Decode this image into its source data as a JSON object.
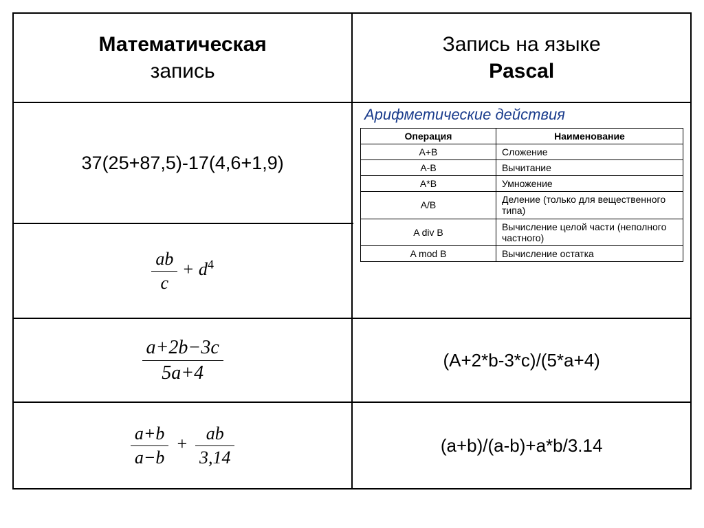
{
  "colors": {
    "border": "#000000",
    "background": "#ffffff",
    "overlay_title": "#1a3c8c"
  },
  "header": {
    "left_bold": "Математическая",
    "left_plain": "запись",
    "right_plain": "Запись на языке",
    "right_bold": "Pascal"
  },
  "rows": [
    {
      "math_plain": "37(25+87,5)-17(4,6+1,9)",
      "pascal": ""
    },
    {
      "math_frac_num": "ab",
      "math_frac_den": "c",
      "math_tail": " + d",
      "math_sup": "4",
      "pascal": ""
    },
    {
      "math_frac_num": "a+2b−3c",
      "math_frac_den": "5a+4",
      "pascal": "(A+2*b-3*c)/(5*a+4)"
    },
    {
      "math_frac1_num": "a+b",
      "math_frac1_den": "a−b",
      "math_plus": "+",
      "math_frac2_num": "ab",
      "math_frac2_den": "3,14",
      "pascal": "(a+b)/(a-b)+a*b/3.14"
    }
  ],
  "overlay": {
    "title": "Арифметические действия",
    "columns": [
      "Операция",
      "Наименование"
    ],
    "ops": [
      {
        "op": "A+B",
        "name": "Сложение",
        "small": false
      },
      {
        "op": "A-B",
        "name": "Вычитание",
        "small": false
      },
      {
        "op": "A*B",
        "name": "Умножение",
        "small": false
      },
      {
        "op": "A/B",
        "name": "Деление (только для вещественного типа)",
        "small": true
      },
      {
        "op": "A div B",
        "name": "Вычисление целой части (неполного частного)",
        "small": true
      },
      {
        "op": "A mod B",
        "name": "Вычисление остатка",
        "small": true
      }
    ]
  }
}
